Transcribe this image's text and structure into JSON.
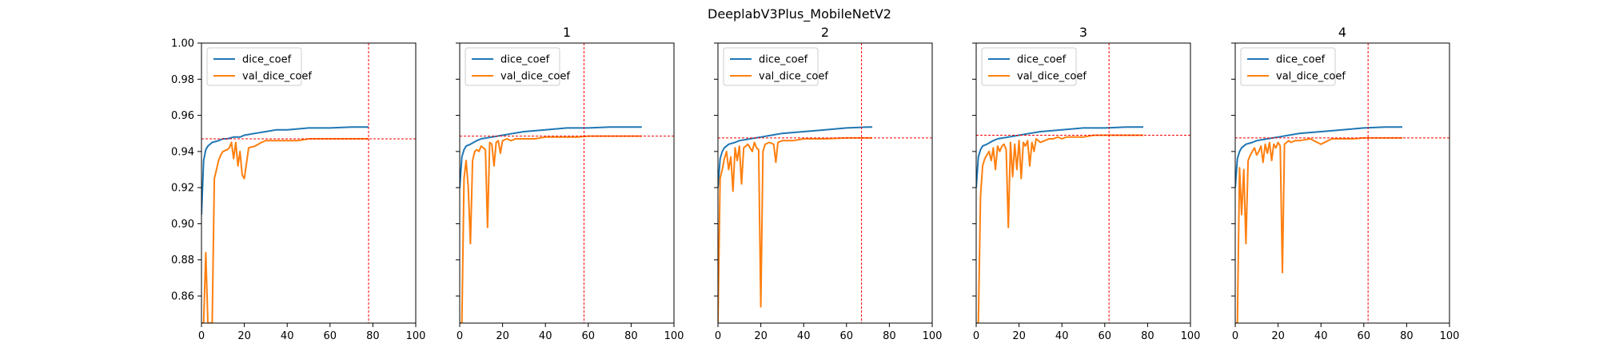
{
  "figure": {
    "suptitle": "DeeplabV3Plus_MobileNetV2"
  },
  "chart_data": [
    {
      "type": "line",
      "title": "",
      "xlabel": "",
      "ylabel": "",
      "xlim": [
        0,
        100
      ],
      "ylim": [
        0.845,
        1.0
      ],
      "xticks": [
        "0",
        "20",
        "40",
        "60",
        "80",
        "100"
      ],
      "yticks": [
        "0.86",
        "0.88",
        "0.90",
        "0.92",
        "0.94",
        "0.96",
        "0.98",
        "1.00"
      ],
      "show_y_tick_labels": true,
      "legend": {
        "placement": "top-left",
        "entries": [
          "dice_coef",
          "val_dice_coef"
        ]
      },
      "grid": false,
      "vline_x": 78,
      "hline_y": 0.947,
      "series": [
        {
          "name": "dice_coef",
          "color": "#1f77b4",
          "x": [
            0,
            1,
            2,
            3,
            5,
            8,
            10,
            12,
            15,
            18,
            20,
            25,
            30,
            35,
            40,
            50,
            60,
            70,
            78
          ],
          "y": [
            0.905,
            0.935,
            0.941,
            0.943,
            0.945,
            0.946,
            0.947,
            0.947,
            0.948,
            0.948,
            0.949,
            0.95,
            0.951,
            0.952,
            0.952,
            0.953,
            0.953,
            0.9535,
            0.9535
          ]
        },
        {
          "name": "val_dice_coef",
          "color": "#ff7f0e",
          "x": [
            0,
            1,
            2,
            3,
            4,
            5,
            6,
            7,
            8,
            9,
            10,
            12,
            13,
            14,
            15,
            16,
            17,
            18,
            19,
            20,
            22,
            25,
            28,
            30,
            35,
            40,
            45,
            50,
            60,
            70,
            78
          ],
          "y": [
            0.845,
            0.845,
            0.884,
            0.845,
            0.845,
            0.845,
            0.925,
            0.93,
            0.935,
            0.938,
            0.94,
            0.941,
            0.942,
            0.945,
            0.936,
            0.945,
            0.932,
            0.94,
            0.927,
            0.925,
            0.942,
            0.943,
            0.945,
            0.946,
            0.946,
            0.946,
            0.946,
            0.947,
            0.947,
            0.947,
            0.947
          ]
        }
      ]
    },
    {
      "type": "line",
      "title": "1",
      "xlabel": "",
      "ylabel": "",
      "xlim": [
        0,
        100
      ],
      "ylim": [
        0.845,
        1.0
      ],
      "xticks": [
        "0",
        "20",
        "40",
        "60",
        "80",
        "100"
      ],
      "yticks": [
        "0.86",
        "0.88",
        "0.90",
        "0.92",
        "0.94",
        "0.96",
        "0.98",
        "1.00"
      ],
      "show_y_tick_labels": false,
      "legend": {
        "placement": "top-left",
        "entries": [
          "dice_coef",
          "val_dice_coef"
        ]
      },
      "grid": false,
      "vline_x": 58,
      "hline_y": 0.9485,
      "series": [
        {
          "name": "dice_coef",
          "color": "#1f77b4",
          "x": [
            0,
            1,
            2,
            3,
            5,
            8,
            10,
            15,
            20,
            25,
            30,
            40,
            50,
            60,
            70,
            80,
            85
          ],
          "y": [
            0.92,
            0.937,
            0.941,
            0.943,
            0.944,
            0.946,
            0.947,
            0.948,
            0.949,
            0.95,
            0.951,
            0.952,
            0.953,
            0.953,
            0.9535,
            0.9535,
            0.9535
          ]
        },
        {
          "name": "val_dice_coef",
          "color": "#ff7f0e",
          "x": [
            0,
            1,
            2,
            3,
            4,
            5,
            6,
            7,
            8,
            9,
            10,
            11,
            12,
            13,
            14,
            15,
            16,
            17,
            18,
            19,
            20,
            22,
            24,
            26,
            28,
            30,
            35,
            40,
            45,
            50,
            55,
            60,
            70,
            80,
            85
          ],
          "y": [
            0.845,
            0.845,
            0.925,
            0.935,
            0.92,
            0.889,
            0.935,
            0.94,
            0.941,
            0.94,
            0.943,
            0.942,
            0.941,
            0.898,
            0.945,
            0.944,
            0.932,
            0.945,
            0.946,
            0.939,
            0.946,
            0.947,
            0.946,
            0.947,
            0.947,
            0.947,
            0.947,
            0.948,
            0.948,
            0.948,
            0.948,
            0.9485,
            0.9485,
            0.9485,
            0.9485
          ]
        }
      ]
    },
    {
      "type": "line",
      "title": "2",
      "xlabel": "",
      "ylabel": "",
      "xlim": [
        0,
        100
      ],
      "ylim": [
        0.845,
        1.0
      ],
      "xticks": [
        "0",
        "20",
        "40",
        "60",
        "80",
        "100"
      ],
      "yticks": [
        "0.86",
        "0.88",
        "0.90",
        "0.92",
        "0.94",
        "0.96",
        "0.98",
        "1.00"
      ],
      "show_y_tick_labels": false,
      "legend": {
        "placement": "top-left",
        "entries": [
          "dice_coef",
          "val_dice_coef"
        ]
      },
      "grid": false,
      "vline_x": 67,
      "hline_y": 0.9475,
      "series": [
        {
          "name": "dice_coef",
          "color": "#1f77b4",
          "x": [
            0,
            1,
            2,
            3,
            5,
            8,
            10,
            15,
            20,
            25,
            30,
            40,
            50,
            60,
            70,
            72
          ],
          "y": [
            0.92,
            0.936,
            0.94,
            0.942,
            0.944,
            0.945,
            0.946,
            0.947,
            0.948,
            0.949,
            0.95,
            0.951,
            0.952,
            0.953,
            0.9535,
            0.9535
          ]
        },
        {
          "name": "val_dice_coef",
          "color": "#ff7f0e",
          "x": [
            0,
            1,
            2,
            3,
            4,
            5,
            6,
            7,
            8,
            9,
            10,
            11,
            12,
            13,
            14,
            15,
            16,
            17,
            18,
            19,
            20,
            21,
            22,
            24,
            26,
            27,
            28,
            30,
            35,
            40,
            50,
            60,
            67,
            72
          ],
          "y": [
            0.845,
            0.925,
            0.93,
            0.936,
            0.94,
            0.93,
            0.937,
            0.918,
            0.942,
            0.935,
            0.943,
            0.922,
            0.942,
            0.943,
            0.944,
            0.942,
            0.94,
            0.945,
            0.942,
            0.941,
            0.854,
            0.94,
            0.944,
            0.945,
            0.944,
            0.934,
            0.945,
            0.946,
            0.946,
            0.947,
            0.947,
            0.9475,
            0.9475,
            0.9475
          ]
        }
      ]
    },
    {
      "type": "line",
      "title": "3",
      "xlabel": "",
      "ylabel": "",
      "xlim": [
        0,
        100
      ],
      "ylim": [
        0.845,
        1.0
      ],
      "xticks": [
        "0",
        "20",
        "40",
        "60",
        "80",
        "100"
      ],
      "yticks": [
        "0.86",
        "0.88",
        "0.90",
        "0.92",
        "0.94",
        "0.96",
        "0.98",
        "1.00"
      ],
      "show_y_tick_labels": false,
      "legend": {
        "placement": "top-left",
        "entries": [
          "dice_coef",
          "val_dice_coef"
        ]
      },
      "grid": false,
      "vline_x": 62,
      "hline_y": 0.949,
      "series": [
        {
          "name": "dice_coef",
          "color": "#1f77b4",
          "x": [
            0,
            1,
            2,
            3,
            5,
            8,
            10,
            15,
            20,
            25,
            30,
            40,
            50,
            60,
            70,
            78
          ],
          "y": [
            0.92,
            0.937,
            0.941,
            0.943,
            0.944,
            0.946,
            0.947,
            0.948,
            0.949,
            0.95,
            0.951,
            0.952,
            0.953,
            0.953,
            0.9535,
            0.9535
          ]
        },
        {
          "name": "val_dice_coef",
          "color": "#ff7f0e",
          "x": [
            0,
            1,
            2,
            3,
            4,
            5,
            6,
            7,
            8,
            9,
            10,
            11,
            12,
            13,
            14,
            15,
            16,
            17,
            18,
            19,
            20,
            21,
            22,
            23,
            24,
            25,
            26,
            27,
            28,
            30,
            32,
            34,
            36,
            38,
            40,
            42,
            45,
            50,
            55,
            60,
            62,
            70,
            78
          ],
          "y": [
            0.845,
            0.845,
            0.915,
            0.932,
            0.936,
            0.938,
            0.94,
            0.935,
            0.942,
            0.93,
            0.943,
            0.94,
            0.943,
            0.944,
            0.941,
            0.898,
            0.945,
            0.926,
            0.944,
            0.93,
            0.946,
            0.925,
            0.945,
            0.943,
            0.946,
            0.932,
            0.945,
            0.94,
            0.947,
            0.945,
            0.946,
            0.947,
            0.947,
            0.948,
            0.947,
            0.948,
            0.948,
            0.948,
            0.949,
            0.949,
            0.949,
            0.949,
            0.949
          ]
        }
      ]
    },
    {
      "type": "line",
      "title": "4",
      "xlabel": "",
      "ylabel": "",
      "xlim": [
        0,
        100
      ],
      "ylim": [
        0.845,
        1.0
      ],
      "xticks": [
        "0",
        "20",
        "40",
        "60",
        "80",
        "100"
      ],
      "yticks": [
        "0.86",
        "0.88",
        "0.90",
        "0.92",
        "0.94",
        "0.96",
        "0.98",
        "1.00"
      ],
      "show_y_tick_labels": false,
      "legend": {
        "placement": "top-left",
        "entries": [
          "dice_coef",
          "val_dice_coef"
        ]
      },
      "grid": false,
      "vline_x": 62,
      "hline_y": 0.9475,
      "series": [
        {
          "name": "dice_coef",
          "color": "#1f77b4",
          "x": [
            0,
            1,
            2,
            3,
            5,
            8,
            10,
            15,
            20,
            25,
            30,
            40,
            50,
            60,
            70,
            78
          ],
          "y": [
            0.92,
            0.936,
            0.94,
            0.942,
            0.944,
            0.945,
            0.946,
            0.947,
            0.948,
            0.949,
            0.95,
            0.951,
            0.952,
            0.953,
            0.9535,
            0.9535
          ]
        },
        {
          "name": "val_dice_coef",
          "color": "#ff7f0e",
          "x": [
            0,
            1,
            2,
            3,
            4,
            5,
            6,
            7,
            8,
            9,
            10,
            11,
            12,
            13,
            14,
            15,
            16,
            17,
            18,
            19,
            20,
            21,
            22,
            23,
            24,
            25,
            26,
            28,
            30,
            35,
            40,
            45,
            50,
            55,
            60,
            62,
            70,
            78
          ],
          "y": [
            0.845,
            0.845,
            0.931,
            0.905,
            0.93,
            0.889,
            0.935,
            0.938,
            0.94,
            0.942,
            0.938,
            0.94,
            0.943,
            0.934,
            0.944,
            0.939,
            0.945,
            0.935,
            0.944,
            0.942,
            0.945,
            0.943,
            0.873,
            0.944,
            0.945,
            0.946,
            0.945,
            0.946,
            0.946,
            0.947,
            0.944,
            0.947,
            0.947,
            0.947,
            0.9475,
            0.9475,
            0.9475,
            0.9475
          ]
        }
      ]
    }
  ]
}
